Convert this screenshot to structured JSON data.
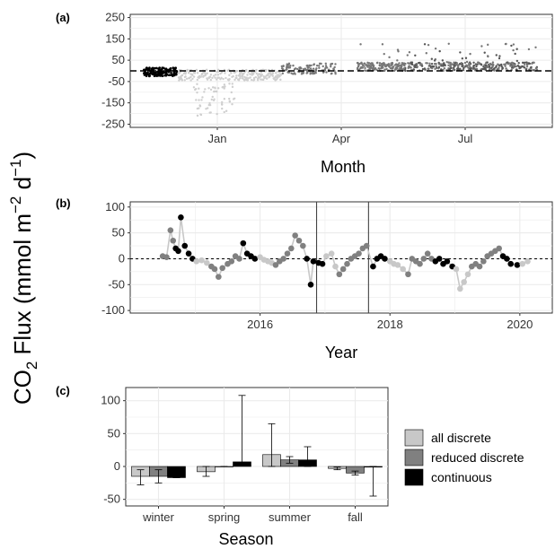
{
  "figure": {
    "ylabel_main": "CO",
    "ylabel_sub": "2",
    "ylabel_rest": " Flux (mmol m",
    "ylabel_sup1": "−2",
    "ylabel_d": " d",
    "ylabel_sup2": "−1",
    "ylabel_close": ")"
  },
  "colors": {
    "all_discrete": "#c8c8c8",
    "reduced_discrete": "#808080",
    "continuous": "#000000",
    "panel_a_early": "#cfcfcf",
    "panel_a_mid": "#777777",
    "panel_a_late": "#555555",
    "grid": "#ebebeb",
    "border": "#333333"
  },
  "chart_data": [
    {
      "panel": "(a)",
      "type": "scatter",
      "xlabel": "Month",
      "ylabel": "",
      "ylim": [
        -265,
        265
      ],
      "yticks": [
        250,
        150,
        50,
        -50,
        -150,
        -250
      ],
      "ytick_labels": [
        "250",
        "150",
        "50",
        "-50",
        "-150",
        "-250"
      ],
      "xticks": [
        "Jan",
        "Apr",
        "Jul"
      ],
      "reference_line": 0,
      "grid": true,
      "series": [
        {
          "x_range": [
            "Nov",
            "mid-Dec"
          ],
          "y_center": -5,
          "y_spread": 20,
          "color": "continuous"
        },
        {
          "x_range": [
            "mid-Dec",
            "mid-Mar"
          ],
          "y_center": -40,
          "y_min": -215,
          "color": "panel_a_early"
        },
        {
          "x_range": [
            "mid-Mar",
            "end-Mar"
          ],
          "y_center": 10,
          "y_spread": 25,
          "color": "panel_a_mid"
        },
        {
          "x_range": [
            "Apr",
            "Sep"
          ],
          "y_center": 20,
          "y_max": 160,
          "color": "panel_a_late"
        }
      ]
    },
    {
      "panel": "(b)",
      "type": "line",
      "xlabel": "Year",
      "ylabel": "",
      "ylim": [
        -105,
        110
      ],
      "yticks": [
        100,
        50,
        0,
        -50,
        -100
      ],
      "ytick_labels": [
        "100",
        "50",
        "0",
        "-50",
        "-100"
      ],
      "xticks": [
        2016,
        2018,
        2020
      ],
      "xlim": [
        2014.0,
        2020.5
      ],
      "reference_line": 0,
      "vertical_lines": [
        2016.87,
        2017.67
      ],
      "grid": true,
      "series": [
        {
          "x": [
            2014.5,
            2014.56,
            2014.62,
            2014.66,
            2014.7,
            2014.74,
            2014.78,
            2014.84,
            2014.9,
            2014.96,
            2015.02,
            2015.1,
            2015.18,
            2015.25,
            2015.3,
            2015.36,
            2015.42,
            2015.5,
            2015.56,
            2015.62,
            2015.68,
            2015.74,
            2015.8,
            2015.86,
            2015.92,
            2016.0,
            2016.06,
            2016.12,
            2016.18,
            2016.24,
            2016.3,
            2016.36,
            2016.42,
            2016.48,
            2016.54,
            2016.6,
            2016.66,
            2016.72,
            2016.78,
            2016.82,
            2016.9,
            2016.96,
            2017.02,
            2017.1,
            2017.16,
            2017.22,
            2017.28,
            2017.34,
            2017.4,
            2017.46,
            2017.52,
            2017.58,
            2017.64,
            2017.74,
            2017.8,
            2017.86,
            2017.92,
            2018.0,
            2018.06,
            2018.12,
            2018.2,
            2018.28,
            2018.34,
            2018.4,
            2018.46,
            2018.52,
            2018.58,
            2018.64,
            2018.7,
            2018.76,
            2018.82,
            2018.88,
            2018.96,
            2019.02,
            2019.08,
            2019.14,
            2019.2,
            2019.26,
            2019.32,
            2019.38,
            2019.44,
            2019.5,
            2019.56,
            2019.62,
            2019.68,
            2019.74,
            2019.8,
            2019.86,
            2019.96,
            2020.04,
            2020.12
          ],
          "y": [
            5,
            3,
            55,
            35,
            20,
            15,
            80,
            25,
            10,
            0,
            -5,
            -3,
            -8,
            -15,
            -20,
            -35,
            -18,
            -10,
            -5,
            5,
            0,
            30,
            10,
            5,
            0,
            3,
            -2,
            -5,
            -8,
            -12,
            -5,
            0,
            10,
            20,
            45,
            35,
            25,
            0,
            -50,
            -5,
            -8,
            -10,
            5,
            10,
            -15,
            -30,
            -20,
            -10,
            0,
            5,
            10,
            20,
            25,
            -15,
            0,
            5,
            0,
            -5,
            -10,
            -12,
            -20,
            -30,
            0,
            -5,
            -10,
            0,
            10,
            0,
            -5,
            0,
            -10,
            -5,
            -15,
            -20,
            -58,
            -45,
            -30,
            -15,
            -10,
            -15,
            -5,
            5,
            10,
            15,
            20,
            5,
            0,
            -10,
            -12,
            -10,
            -5
          ]
        }
      ]
    },
    {
      "panel": "(c)",
      "type": "bar",
      "xlabel": "Season",
      "ylabel": "",
      "categories": [
        "winter",
        "spring",
        "summer",
        "fall"
      ],
      "ylim": [
        -60,
        120
      ],
      "yticks": [
        100,
        50,
        0,
        -50
      ],
      "ytick_labels": [
        "100",
        "50",
        "0",
        "-50"
      ],
      "grid": true,
      "series": [
        {
          "name": "all discrete",
          "color": "all_discrete",
          "values": [
            -15,
            -8,
            18,
            -3
          ],
          "err_low": [
            -28,
            -15,
            0,
            -5
          ],
          "err_high": [
            -5,
            0,
            65,
            -1
          ]
        },
        {
          "name": "reduced discrete",
          "color": "reduced_discrete",
          "values": [
            -15,
            0,
            10,
            -10
          ],
          "err_low": [
            -25,
            0,
            5,
            -13
          ],
          "err_high": [
            -5,
            0,
            15,
            -7
          ]
        },
        {
          "name": "continuous",
          "color": "continuous",
          "values": [
            -17,
            7,
            10,
            -1
          ],
          "err_low": [
            -17,
            5,
            0,
            -45
          ],
          "err_high": [
            -17,
            108,
            30,
            0
          ]
        }
      ],
      "legend_position": "right"
    }
  ]
}
